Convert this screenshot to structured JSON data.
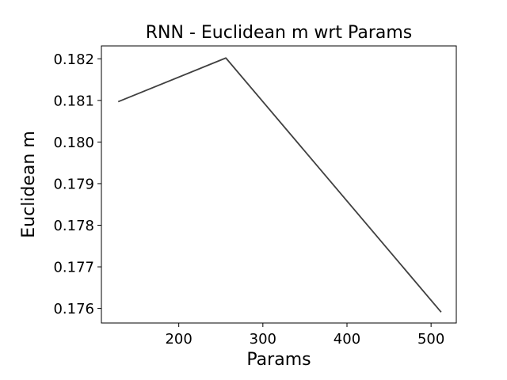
{
  "chart_data": {
    "type": "line",
    "title": "RNN - Euclidean m wrt Params",
    "xlabel": "Params",
    "ylabel": "Euclidean m",
    "xlim": [
      108,
      530
    ],
    "ylim": [
      0.17565,
      0.18231
    ],
    "xticks": [
      200,
      300,
      400,
      500
    ],
    "yticks": [
      0.176,
      0.177,
      0.178,
      0.179,
      0.18,
      0.181,
      0.182
    ],
    "xtick_labels": [
      "200",
      "300",
      "400",
      "500"
    ],
    "ytick_labels": [
      "0.176",
      "0.177",
      "0.178",
      "0.179",
      "0.180",
      "0.181",
      "0.182"
    ],
    "grid": false,
    "series": [
      {
        "color": "#404040",
        "x": [
          128,
          256,
          512
        ],
        "y": [
          0.18097,
          0.18202,
          0.17591
        ]
      }
    ]
  }
}
